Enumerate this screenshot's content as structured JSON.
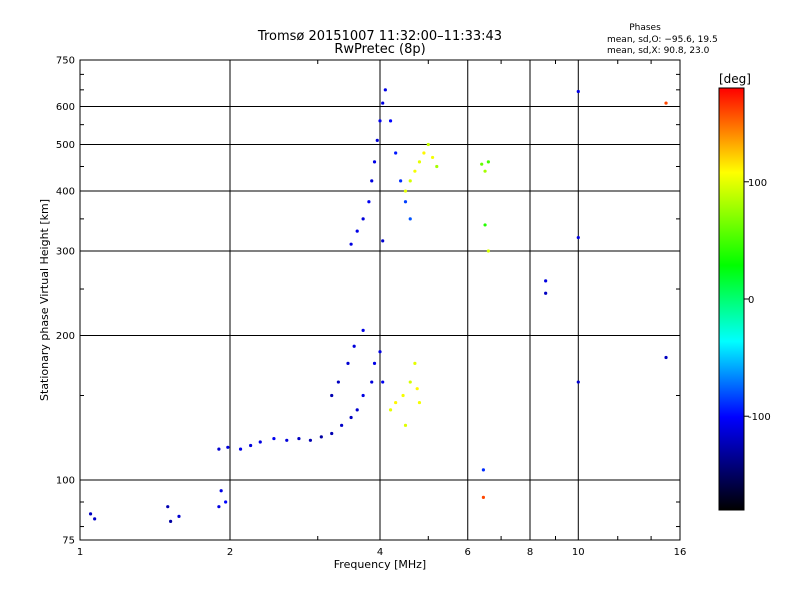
{
  "chart_data": {
    "type": "scatter",
    "title": "Tromsø 20151007 11:32:00–11:33:43",
    "subtitle": "RwPretec (8p)",
    "xlabel": "Frequency [MHz]",
    "ylabel": "Stationary phase Virtual Height [km]",
    "x_scale": "log",
    "y_scale": "log",
    "xlim": [
      1,
      16
    ],
    "ylim": [
      75,
      750
    ],
    "x_ticks": [
      1,
      2,
      4,
      6,
      8,
      10,
      16
    ],
    "y_ticks": [
      75,
      100,
      200,
      300,
      400,
      500,
      600,
      750
    ],
    "grid": true,
    "stats": {
      "heading": "Phases",
      "line_o": "mean, sd,O: −95.6, 19.5",
      "line_x": "mean, sd,X:  90.8, 23.0"
    },
    "colorbar": {
      "label": "[deg]",
      "range": [
        -180,
        180
      ],
      "ticks": [
        100,
        0,
        -100
      ],
      "colors": [
        "#ff0000",
        "#ffff00",
        "#00ff00",
        "#00ffff",
        "#0000ff",
        "#000000"
      ]
    },
    "series": [
      {
        "points": [
          [
            1.05,
            85,
            -120
          ],
          [
            1.07,
            83,
            -118
          ],
          [
            1.5,
            88,
            -125
          ],
          [
            1.52,
            82,
            -130
          ],
          [
            1.58,
            84,
            -115
          ],
          [
            1.9,
            88,
            -110
          ],
          [
            1.92,
            95,
            -108
          ],
          [
            1.96,
            90,
            -100
          ]
        ]
      },
      {
        "points": [
          [
            1.9,
            116,
            -115
          ],
          [
            1.98,
            117,
            -110
          ],
          [
            2.1,
            116,
            -108
          ],
          [
            2.2,
            118,
            -112
          ],
          [
            2.3,
            120,
            -110
          ],
          [
            2.45,
            122,
            -105
          ],
          [
            2.6,
            121,
            -112
          ],
          [
            2.75,
            122,
            -120
          ],
          [
            2.9,
            121,
            -125
          ],
          [
            3.05,
            123,
            -130
          ],
          [
            3.2,
            125,
            -125
          ],
          [
            3.35,
            130,
            -118
          ],
          [
            3.5,
            135,
            -120
          ],
          [
            3.6,
            140,
            -115
          ],
          [
            3.7,
            150,
            -110
          ],
          [
            3.85,
            160,
            -112
          ],
          [
            3.9,
            175,
            -108
          ],
          [
            4.0,
            185,
            -110
          ],
          [
            4.05,
            160,
            -105
          ],
          [
            3.2,
            150,
            -125
          ],
          [
            3.3,
            160,
            -120
          ],
          [
            3.45,
            175,
            -115
          ],
          [
            3.55,
            190,
            -112
          ],
          [
            3.7,
            205,
            -108
          ]
        ]
      },
      {
        "points": [
          [
            4.2,
            140,
            100
          ],
          [
            4.3,
            145,
            110
          ],
          [
            4.45,
            150,
            105
          ],
          [
            4.6,
            160,
            95
          ],
          [
            4.7,
            175,
            100
          ],
          [
            4.75,
            155,
            110
          ],
          [
            4.8,
            145,
            105
          ],
          [
            4.5,
            130,
            98
          ]
        ]
      },
      {
        "points": [
          [
            3.5,
            310,
            -110
          ],
          [
            3.6,
            330,
            -108
          ],
          [
            3.7,
            350,
            -112
          ],
          [
            3.8,
            380,
            -105
          ],
          [
            3.85,
            420,
            -110
          ],
          [
            3.9,
            460,
            -108
          ],
          [
            3.95,
            510,
            -112
          ],
          [
            4.0,
            560,
            -105
          ],
          [
            4.05,
            610,
            -110
          ],
          [
            4.1,
            650,
            -108
          ],
          [
            4.2,
            560,
            -100
          ],
          [
            4.3,
            480,
            -95
          ],
          [
            4.4,
            420,
            -90
          ],
          [
            4.5,
            380,
            -85
          ],
          [
            4.6,
            350,
            -80
          ],
          [
            4.05,
            315,
            -115
          ]
        ]
      },
      {
        "points": [
          [
            4.6,
            420,
            95
          ],
          [
            4.7,
            440,
            105
          ],
          [
            4.8,
            460,
            100
          ],
          [
            4.9,
            480,
            110
          ],
          [
            5.0,
            500,
            90
          ],
          [
            5.1,
            470,
            105
          ],
          [
            5.2,
            450,
            80
          ],
          [
            4.5,
            400,
            100
          ]
        ]
      },
      {
        "points": [
          [
            6.4,
            455,
            60
          ],
          [
            6.5,
            440,
            80
          ],
          [
            6.6,
            460,
            50
          ],
          [
            6.5,
            340,
            40
          ],
          [
            6.6,
            300,
            95
          ],
          [
            6.45,
            105,
            -90
          ],
          [
            6.45,
            92,
            160
          ],
          [
            8.6,
            260,
            -110
          ],
          [
            8.6,
            245,
            -120
          ],
          [
            10.0,
            645,
            -110
          ],
          [
            10.0,
            320,
            -110
          ],
          [
            10.0,
            160,
            -115
          ],
          [
            15.0,
            610,
            160
          ],
          [
            15.0,
            180,
            -120
          ]
        ]
      }
    ]
  }
}
